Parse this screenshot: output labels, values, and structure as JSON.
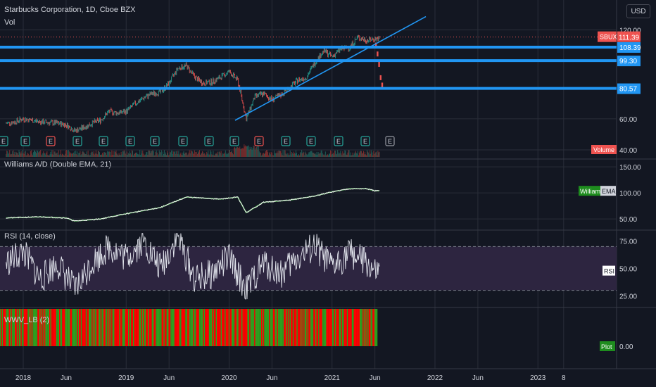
{
  "header": {
    "title": "Starbucks Corporation, 1D, Cboe BZX",
    "vol": "Vol",
    "currency": "USD"
  },
  "colors": {
    "background": "#131722",
    "grid": "#2a2e39",
    "hline": "#2196f3",
    "trendline": "#2196f3",
    "candle_up": "#26a69a",
    "candle_down": "#ef5350",
    "ad_line": "#f4f4f4",
    "ema_line": "#4caf50",
    "rsi_fill": "#2d2540",
    "wwv_green": "#2e9e1f",
    "wwv_red": "#ff0000",
    "price_tag": "#ef5350",
    "volume_tag": "#ef5350"
  },
  "chart_data": [
    {
      "type": "line",
      "name": "price",
      "y_ticks": [
        "120.00",
        "60.00",
        "40.00"
      ],
      "y_range": [
        40,
        125
      ],
      "price_labels": [
        {
          "text": "SBUX",
          "kind": "symbol"
        },
        {
          "text": "111.39",
          "value": 111.39,
          "kind": "last"
        },
        {
          "text": "108.39",
          "value": 108.39,
          "kind": "hline"
        },
        {
          "text": "99.30",
          "value": 99.3,
          "kind": "hline"
        },
        {
          "text": "80.57",
          "value": 80.57,
          "kind": "hline"
        }
      ],
      "volume_label": "Volume",
      "earnings_marker": "E",
      "series_points": [
        [
          "2017-11",
          57
        ],
        [
          "2017-12",
          58
        ],
        [
          "2018-01",
          60
        ],
        [
          "2018-03",
          58
        ],
        [
          "2018-05",
          57
        ],
        [
          "2018-06",
          56
        ],
        [
          "2018-07",
          52
        ],
        [
          "2018-08",
          54
        ],
        [
          "2018-09",
          57
        ],
        [
          "2018-10",
          59
        ],
        [
          "2018-11",
          65
        ],
        [
          "2018-12",
          64
        ],
        [
          "2019-01",
          65
        ],
        [
          "2019-02",
          70
        ],
        [
          "2019-03",
          74
        ],
        [
          "2019-04",
          77
        ],
        [
          "2019-05",
          78
        ],
        [
          "2019-06",
          84
        ],
        [
          "2019-07",
          94
        ],
        [
          "2019-08",
          96
        ],
        [
          "2019-09",
          88
        ],
        [
          "2019-10",
          84
        ],
        [
          "2019-11",
          85
        ],
        [
          "2019-12",
          88
        ],
        [
          "2020-01",
          92
        ],
        [
          "2020-02",
          86
        ],
        [
          "2020-03",
          60
        ],
        [
          "2020-04",
          75
        ],
        [
          "2020-05",
          77
        ],
        [
          "2020-06",
          73
        ],
        [
          "2020-07",
          76
        ],
        [
          "2020-08",
          81
        ],
        [
          "2020-09",
          86
        ],
        [
          "2020-10",
          88
        ],
        [
          "2020-11",
          98
        ],
        [
          "2020-12",
          106
        ],
        [
          "2021-01",
          102
        ],
        [
          "2021-02",
          107
        ],
        [
          "2021-03",
          108
        ],
        [
          "2021-04",
          115
        ],
        [
          "2021-05",
          113
        ],
        [
          "2021-06",
          114
        ]
      ],
      "selloff_points": [
        [
          "2021-06",
          110
        ],
        [
          "2021-06",
          104
        ],
        [
          "2021-07",
          97
        ],
        [
          "2021-07",
          88
        ],
        [
          "2021-07",
          83
        ]
      ]
    },
    {
      "type": "line",
      "name": "Williams A/D",
      "title": "Williams A/D (Double EMA, 21)",
      "y_ticks": [
        "150.00",
        "100.00",
        "50.00"
      ],
      "y_range": [
        30,
        165
      ],
      "labels": [
        "Williams",
        "EMA"
      ],
      "series_points": [
        [
          "2017-11",
          52
        ],
        [
          "2018-03",
          54
        ],
        [
          "2018-06",
          52
        ],
        [
          "2018-07",
          46
        ],
        [
          "2018-10",
          50
        ],
        [
          "2019-01",
          60
        ],
        [
          "2019-05",
          72
        ],
        [
          "2019-08",
          92
        ],
        [
          "2019-12",
          88
        ],
        [
          "2020-02",
          92
        ],
        [
          "2020-03",
          62
        ],
        [
          "2020-05",
          82
        ],
        [
          "2020-08",
          86
        ],
        [
          "2020-11",
          94
        ],
        [
          "2021-01",
          102
        ],
        [
          "2021-03",
          108
        ],
        [
          "2021-05",
          108
        ],
        [
          "2021-06",
          104
        ]
      ]
    },
    {
      "type": "line",
      "name": "RSI",
      "title": "RSI (14, close)",
      "y_ticks": [
        "75.00",
        "50.00",
        "25.00"
      ],
      "y_range": [
        15,
        85
      ],
      "band": [
        30,
        70
      ],
      "label": "RSI",
      "series_points": [
        [
          "2017-11",
          55
        ],
        [
          "2018-01",
          65
        ],
        [
          "2018-03",
          40
        ],
        [
          "2018-05",
          55
        ],
        [
          "2018-07",
          30
        ],
        [
          "2018-09",
          55
        ],
        [
          "2018-11",
          70
        ],
        [
          "2019-01",
          60
        ],
        [
          "2019-03",
          75
        ],
        [
          "2019-05",
          50
        ],
        [
          "2019-07",
          80
        ],
        [
          "2019-09",
          40
        ],
        [
          "2019-11",
          45
        ],
        [
          "2020-01",
          60
        ],
        [
          "2020-03",
          30
        ],
        [
          "2020-05",
          55
        ],
        [
          "2020-07",
          45
        ],
        [
          "2020-09",
          60
        ],
        [
          "2020-11",
          70
        ],
        [
          "2021-01",
          50
        ],
        [
          "2021-03",
          65
        ],
        [
          "2021-05",
          55
        ],
        [
          "2021-06",
          45
        ]
      ]
    },
    {
      "type": "bar",
      "name": "WWV_LB",
      "title": "WWV_LB (2)",
      "y_ticks": [
        "0.00"
      ],
      "label": "Plot"
    }
  ],
  "x_axis": {
    "ticks": [
      {
        "label": "2018",
        "date": "2018-01"
      },
      {
        "label": "Jun",
        "date": "2018-06"
      },
      {
        "label": "2019",
        "date": "2019-01"
      },
      {
        "label": "Jun",
        "date": "2019-06"
      },
      {
        "label": "2020",
        "date": "2020-01"
      },
      {
        "label": "Jun",
        "date": "2020-06"
      },
      {
        "label": "2021",
        "date": "2021-01"
      },
      {
        "label": "Jun",
        "date": "2021-06"
      },
      {
        "label": "2022",
        "date": "2022-01"
      },
      {
        "label": "Jun",
        "date": "2022-06"
      },
      {
        "label": "2023",
        "date": "2023-01"
      },
      {
        "label": "8",
        "date": "2023-04"
      }
    ]
  }
}
